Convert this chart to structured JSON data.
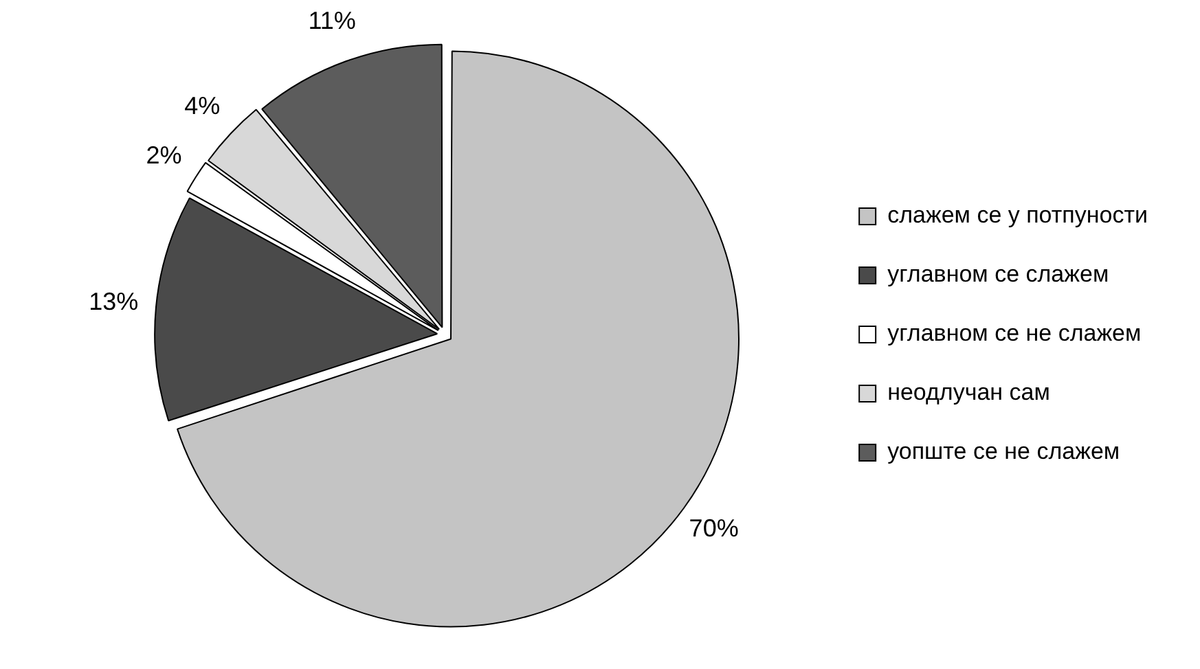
{
  "chart_data": {
    "type": "pie",
    "categories": [
      "слажем се у потпуности",
      "углавном се слажем",
      "углавном се не слажем",
      "неодлучан сам",
      "уопште се не слажем"
    ],
    "values": [
      70,
      13,
      2,
      4,
      11
    ],
    "colors": [
      "#c4c4c4",
      "#4a4a4a",
      "#ffffff",
      "#d8d8d8",
      "#5c5c5c"
    ],
    "value_labels": [
      "70%",
      "13%",
      "2%",
      "4%",
      "11%"
    ],
    "legend": "right"
  }
}
